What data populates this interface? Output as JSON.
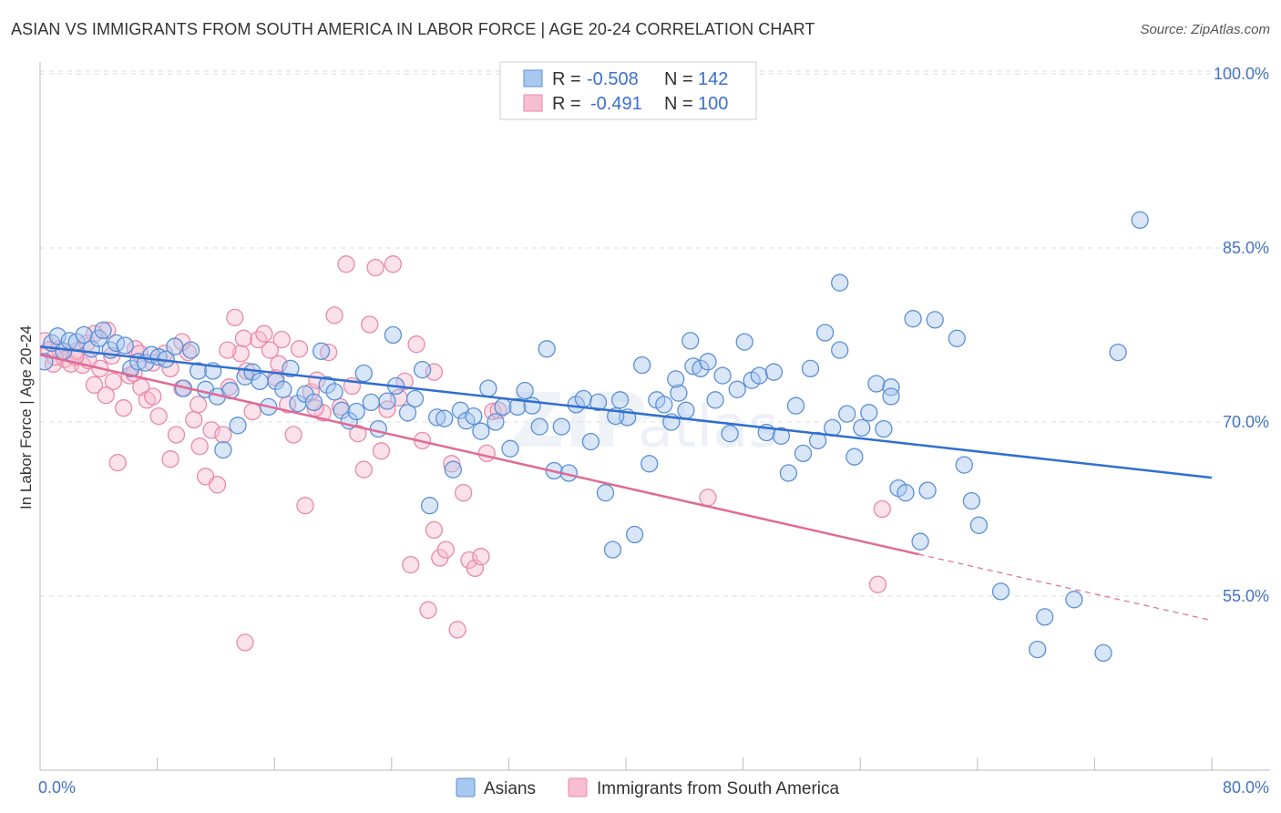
{
  "title": "ASIAN VS IMMIGRANTS FROM SOUTH AMERICA IN LABOR FORCE | AGE 20-24 CORRELATION CHART",
  "source": "Source: ZipAtlas.com",
  "colors": {
    "asian_fill": "#a9c8f0",
    "asian_stroke": "#5b8fd6",
    "asian_line": "#2f6fd0",
    "immig_fill": "#f7bdd0",
    "immig_stroke": "#e889a8",
    "immig_line": "#e06a95",
    "grid": "#dddddd",
    "axis": "#bbbbbb"
  },
  "chart_data": {
    "type": "scatter",
    "ylabel": "In Labor Force | Age 20-24",
    "xlim": [
      0,
      80
    ],
    "ylim": [
      40,
      103
    ],
    "x_tick_labels": [
      "0.0%",
      "80.0%"
    ],
    "y_ticks": [
      55,
      70,
      85,
      100
    ],
    "y_tick_labels": [
      "55.0%",
      "70.0%",
      "85.0%",
      "100.0%"
    ],
    "grid": "dashed horizontal",
    "legend": {
      "position": "top-center",
      "rows": [
        {
          "r_label": "R = ",
          "r_value": "-0.508",
          "n_label": "N = ",
          "n_value": "142"
        },
        {
          "r_label": "R = ",
          "r_value": "-0.491",
          "n_label": "N = ",
          "n_value": "100"
        }
      ]
    },
    "series": [
      {
        "name": "Asians",
        "trend": {
          "x": [
            0,
            80
          ],
          "y": [
            76.5,
            65.2
          ]
        },
        "points": [
          [
            0.3,
            75.2
          ],
          [
            0.8,
            76.8
          ],
          [
            1.2,
            77.4
          ],
          [
            1.6,
            76.1
          ],
          [
            2.0,
            77.0
          ],
          [
            2.5,
            76.9
          ],
          [
            3.0,
            77.5
          ],
          [
            3.5,
            76.3
          ],
          [
            4.0,
            77.2
          ],
          [
            4.3,
            77.9
          ],
          [
            4.8,
            76.2
          ],
          [
            5.2,
            76.8
          ],
          [
            5.8,
            76.6
          ],
          [
            6.2,
            74.6
          ],
          [
            6.7,
            75.2
          ],
          [
            7.2,
            75.1
          ],
          [
            7.6,
            75.8
          ],
          [
            8.1,
            75.6
          ],
          [
            8.6,
            75.4
          ],
          [
            9.2,
            76.5
          ],
          [
            9.8,
            72.9
          ],
          [
            10.3,
            76.2
          ],
          [
            10.8,
            74.4
          ],
          [
            11.3,
            72.8
          ],
          [
            11.8,
            74.4
          ],
          [
            12.1,
            72.2
          ],
          [
            12.5,
            67.6
          ],
          [
            13.0,
            72.7
          ],
          [
            13.5,
            69.7
          ],
          [
            14.0,
            73.9
          ],
          [
            14.5,
            74.3
          ],
          [
            15.0,
            73.5
          ],
          [
            15.6,
            71.3
          ],
          [
            16.1,
            73.5
          ],
          [
            16.6,
            72.8
          ],
          [
            17.1,
            74.6
          ],
          [
            17.6,
            71.6
          ],
          [
            18.1,
            72.4
          ],
          [
            18.7,
            71.7
          ],
          [
            19.2,
            76.1
          ],
          [
            19.6,
            73.2
          ],
          [
            20.1,
            72.6
          ],
          [
            20.6,
            71.0
          ],
          [
            21.1,
            70.1
          ],
          [
            21.6,
            70.9
          ],
          [
            22.1,
            74.2
          ],
          [
            22.6,
            71.7
          ],
          [
            23.1,
            69.4
          ],
          [
            23.7,
            71.8
          ],
          [
            24.1,
            77.5
          ],
          [
            24.3,
            73.1
          ],
          [
            25.1,
            70.8
          ],
          [
            25.6,
            72.0
          ],
          [
            26.1,
            74.5
          ],
          [
            26.6,
            62.8
          ],
          [
            27.1,
            70.4
          ],
          [
            27.6,
            70.3
          ],
          [
            28.2,
            65.9
          ],
          [
            28.7,
            71.0
          ],
          [
            29.1,
            70.1
          ],
          [
            29.6,
            70.5
          ],
          [
            30.1,
            69.2
          ],
          [
            30.6,
            72.9
          ],
          [
            31.1,
            70.0
          ],
          [
            31.6,
            71.3
          ],
          [
            32.1,
            67.7
          ],
          [
            32.6,
            71.3
          ],
          [
            33.1,
            72.7
          ],
          [
            33.6,
            71.4
          ],
          [
            34.1,
            69.6
          ],
          [
            34.6,
            76.3
          ],
          [
            35.1,
            65.8
          ],
          [
            35.6,
            69.6
          ],
          [
            36.1,
            65.6
          ],
          [
            36.6,
            71.5
          ],
          [
            37.1,
            72.0
          ],
          [
            37.6,
            68.3
          ],
          [
            38.1,
            71.7
          ],
          [
            38.6,
            63.9
          ],
          [
            39.1,
            59.0
          ],
          [
            39.6,
            71.9
          ],
          [
            40.1,
            70.4
          ],
          [
            40.6,
            60.3
          ],
          [
            41.1,
            74.9
          ],
          [
            41.6,
            66.4
          ],
          [
            42.1,
            71.9
          ],
          [
            42.6,
            71.5
          ],
          [
            43.1,
            70.0
          ],
          [
            43.6,
            72.5
          ],
          [
            44.1,
            71.0
          ],
          [
            44.6,
            74.8
          ],
          [
            45.1,
            74.6
          ],
          [
            45.6,
            75.2
          ],
          [
            46.1,
            71.9
          ],
          [
            46.6,
            74.0
          ],
          [
            47.1,
            69.0
          ],
          [
            47.6,
            72.8
          ],
          [
            48.1,
            76.9
          ],
          [
            48.6,
            73.6
          ],
          [
            49.1,
            74.0
          ],
          [
            49.6,
            69.1
          ],
          [
            50.1,
            74.3
          ],
          [
            50.6,
            68.8
          ],
          [
            51.1,
            65.6
          ],
          [
            51.6,
            71.4
          ],
          [
            52.1,
            67.3
          ],
          [
            52.6,
            74.6
          ],
          [
            53.1,
            68.4
          ],
          [
            53.6,
            77.7
          ],
          [
            54.1,
            69.5
          ],
          [
            54.6,
            76.2
          ],
          [
            55.1,
            70.7
          ],
          [
            55.6,
            67.0
          ],
          [
            56.1,
            69.5
          ],
          [
            56.6,
            70.8
          ],
          [
            57.1,
            73.3
          ],
          [
            57.6,
            69.4
          ],
          [
            58.1,
            73.0
          ],
          [
            58.6,
            64.3
          ],
          [
            59.1,
            63.9
          ],
          [
            59.6,
            78.9
          ],
          [
            60.1,
            59.7
          ],
          [
            60.6,
            64.1
          ],
          [
            61.1,
            78.8
          ],
          [
            63.1,
            66.3
          ],
          [
            63.6,
            63.2
          ],
          [
            64.1,
            61.1
          ],
          [
            65.6,
            55.4
          ],
          [
            68.1,
            50.4
          ],
          [
            68.6,
            53.2
          ],
          [
            70.6,
            54.7
          ],
          [
            72.6,
            50.1
          ],
          [
            73.6,
            76.0
          ],
          [
            75.1,
            87.4
          ],
          [
            54.6,
            82.0
          ],
          [
            44.4,
            77.0
          ],
          [
            62.6,
            77.2
          ],
          [
            58.1,
            72.2
          ],
          [
            39.3,
            70.5
          ],
          [
            43.4,
            73.7
          ]
        ]
      },
      {
        "name": "Immigrants from South America",
        "trend": {
          "x": [
            0,
            60
          ],
          "y": [
            75.8,
            58.6
          ]
        },
        "trend_dashed": {
          "x": [
            60,
            80
          ],
          "y": [
            58.6,
            52.9
          ]
        },
        "points": [
          [
            0.3,
            77.0
          ],
          [
            0.6,
            76.2
          ],
          [
            0.9,
            75.0
          ],
          [
            1.3,
            76.3
          ],
          [
            1.7,
            75.4
          ],
          [
            2.1,
            75.0
          ],
          [
            2.5,
            76.1
          ],
          [
            2.9,
            74.9
          ],
          [
            3.3,
            75.3
          ],
          [
            3.7,
            73.2
          ],
          [
            4.1,
            74.6
          ],
          [
            4.5,
            72.3
          ],
          [
            4.9,
            75.7
          ],
          [
            5.3,
            66.5
          ],
          [
            5.7,
            71.2
          ],
          [
            6.1,
            74.0
          ],
          [
            6.5,
            76.3
          ],
          [
            6.9,
            73.0
          ],
          [
            7.3,
            71.9
          ],
          [
            7.7,
            72.2
          ],
          [
            8.1,
            70.5
          ],
          [
            8.5,
            75.9
          ],
          [
            8.9,
            74.6
          ],
          [
            9.3,
            68.9
          ],
          [
            9.7,
            72.9
          ],
          [
            10.1,
            76.0
          ],
          [
            10.5,
            70.2
          ],
          [
            10.9,
            67.9
          ],
          [
            11.3,
            65.3
          ],
          [
            11.7,
            69.3
          ],
          [
            12.1,
            64.6
          ],
          [
            12.5,
            68.9
          ],
          [
            12.9,
            73.0
          ],
          [
            13.3,
            79.0
          ],
          [
            13.7,
            75.9
          ],
          [
            14.1,
            74.4
          ],
          [
            14.5,
            70.9
          ],
          [
            14.9,
            77.1
          ],
          [
            15.3,
            77.6
          ],
          [
            15.7,
            76.2
          ],
          [
            16.1,
            73.8
          ],
          [
            16.5,
            77.1
          ],
          [
            16.9,
            71.5
          ],
          [
            17.3,
            68.9
          ],
          [
            17.7,
            76.3
          ],
          [
            18.1,
            62.8
          ],
          [
            18.5,
            72.6
          ],
          [
            18.9,
            73.6
          ],
          [
            19.3,
            70.8
          ],
          [
            19.7,
            76.0
          ],
          [
            20.1,
            79.2
          ],
          [
            20.5,
            71.3
          ],
          [
            20.9,
            83.6
          ],
          [
            21.3,
            73.1
          ],
          [
            21.7,
            69.0
          ],
          [
            22.1,
            65.9
          ],
          [
            22.5,
            78.4
          ],
          [
            22.9,
            83.3
          ],
          [
            23.3,
            67.5
          ],
          [
            23.7,
            71.1
          ],
          [
            24.1,
            83.6
          ],
          [
            24.5,
            72.1
          ],
          [
            24.9,
            73.5
          ],
          [
            25.3,
            57.7
          ],
          [
            25.7,
            76.7
          ],
          [
            26.1,
            68.4
          ],
          [
            26.5,
            53.8
          ],
          [
            26.9,
            60.7
          ],
          [
            27.3,
            58.3
          ],
          [
            27.7,
            59.0
          ],
          [
            28.1,
            66.4
          ],
          [
            28.5,
            52.1
          ],
          [
            28.9,
            63.9
          ],
          [
            29.3,
            58.1
          ],
          [
            29.7,
            57.4
          ],
          [
            30.1,
            58.4
          ],
          [
            30.5,
            67.3
          ],
          [
            30.9,
            70.9
          ],
          [
            31.3,
            71.0
          ],
          [
            45.6,
            63.5
          ],
          [
            14.0,
            51.0
          ],
          [
            12.8,
            76.2
          ],
          [
            7.7,
            75.1
          ],
          [
            3.2,
            76.8
          ],
          [
            4.6,
            77.9
          ],
          [
            6.8,
            75.9
          ],
          [
            9.7,
            76.9
          ],
          [
            16.3,
            75.0
          ],
          [
            18.8,
            71.2
          ],
          [
            8.9,
            66.8
          ],
          [
            10.8,
            71.5
          ],
          [
            57.2,
            56.0
          ],
          [
            57.5,
            62.5
          ],
          [
            26.9,
            74.3
          ],
          [
            2.4,
            75.6
          ],
          [
            1.0,
            75.6
          ],
          [
            5.0,
            73.5
          ],
          [
            3.7,
            77.6
          ],
          [
            6.4,
            74.2
          ],
          [
            13.9,
            77.2
          ]
        ]
      }
    ]
  }
}
